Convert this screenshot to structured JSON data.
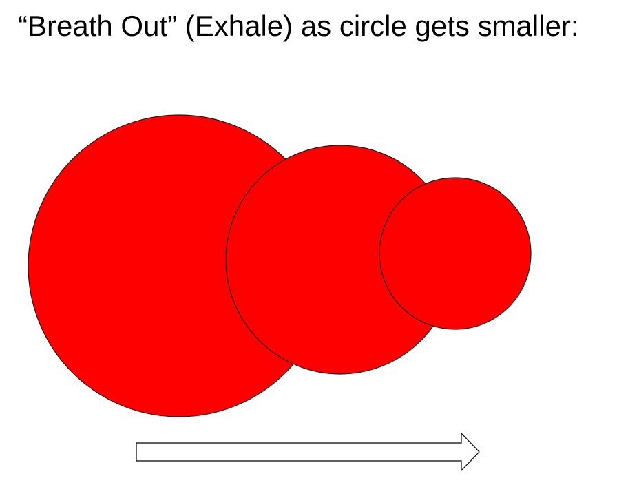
{
  "slide": {
    "title": "“Breath Out” (Exhale) as circle gets smaller:"
  },
  "diagram": {
    "circles": [
      {
        "name": "large-circle",
        "size_rank": 1
      },
      {
        "name": "medium-circle",
        "size_rank": 2
      },
      {
        "name": "small-circle",
        "size_rank": 3
      }
    ],
    "fill_color": "#ff0000",
    "stroke_color": "#1a1a1a",
    "arrow": {
      "direction": "right",
      "fill_color": "#ffffff",
      "stroke_color": "#000000"
    }
  }
}
